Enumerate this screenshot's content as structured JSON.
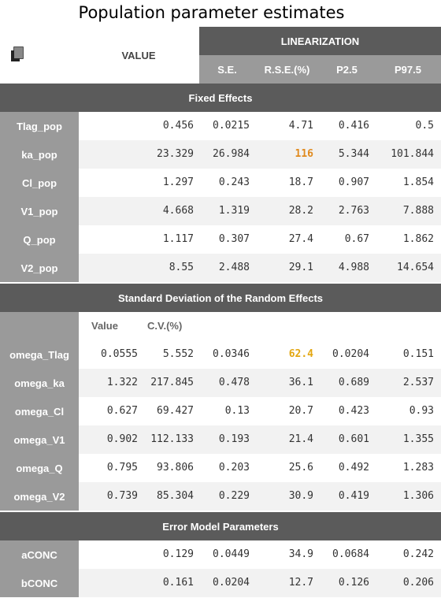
{
  "title": "Population parameter estimates",
  "header": {
    "value": "VALUE",
    "linearization": "LINEARIZATION",
    "columns": [
      "S.E.",
      "R.S.E.(%)",
      "P2.5",
      "P97.5"
    ]
  },
  "sections": {
    "fixed": "Fixed Effects",
    "random": "Standard Deviation of the Random Effects",
    "error": "Error Model Parameters"
  },
  "random_subheader": {
    "value": "Value",
    "cv": "C.V.(%)"
  },
  "highlight_colors": {
    "orange": "#e08a1e",
    "gold": "#e3a712"
  },
  "fixed_rows": [
    {
      "name": "Tlag_pop",
      "value": "0.456",
      "se": "0.0215",
      "rse": "4.71",
      "p25": "0.416",
      "p975": "0.5"
    },
    {
      "name": "ka_pop",
      "value": "23.329",
      "se": "26.984",
      "rse": "116",
      "p25": "5.344",
      "p975": "101.844"
    },
    {
      "name": "Cl_pop",
      "value": "1.297",
      "se": "0.243",
      "rse": "18.7",
      "p25": "0.907",
      "p975": "1.854"
    },
    {
      "name": "V1_pop",
      "value": "4.668",
      "se": "1.319",
      "rse": "28.2",
      "p25": "2.763",
      "p975": "7.888"
    },
    {
      "name": "Q_pop",
      "value": "1.117",
      "se": "0.307",
      "rse": "27.4",
      "p25": "0.67",
      "p975": "1.862"
    },
    {
      "name": "V2_pop",
      "value": "8.55",
      "se": "2.488",
      "rse": "29.1",
      "p25": "4.988",
      "p975": "14.654"
    }
  ],
  "random_rows": [
    {
      "name": "omega_Tlag",
      "value": "0.0555",
      "cv": "5.552",
      "se": "0.0346",
      "rse": "62.4",
      "p25": "0.0204",
      "p975": "0.151"
    },
    {
      "name": "omega_ka",
      "value": "1.322",
      "cv": "217.845",
      "se": "0.478",
      "rse": "36.1",
      "p25": "0.689",
      "p975": "2.537"
    },
    {
      "name": "omega_Cl",
      "value": "0.627",
      "cv": "69.427",
      "se": "0.13",
      "rse": "20.7",
      "p25": "0.423",
      "p975": "0.93"
    },
    {
      "name": "omega_V1",
      "value": "0.902",
      "cv": "112.133",
      "se": "0.193",
      "rse": "21.4",
      "p25": "0.601",
      "p975": "1.355"
    },
    {
      "name": "omega_Q",
      "value": "0.795",
      "cv": "93.806",
      "se": "0.203",
      "rse": "25.6",
      "p25": "0.492",
      "p975": "1.283"
    },
    {
      "name": "omega_V2",
      "value": "0.739",
      "cv": "85.304",
      "se": "0.229",
      "rse": "30.9",
      "p25": "0.419",
      "p975": "1.306"
    }
  ],
  "error_rows": [
    {
      "name": "aCONC",
      "value": "0.129",
      "se": "0.0449",
      "rse": "34.9",
      "p25": "0.0684",
      "p975": "0.242"
    },
    {
      "name": "bCONC",
      "value": "0.161",
      "se": "0.0204",
      "rse": "12.7",
      "p25": "0.126",
      "p975": "0.206"
    }
  ]
}
